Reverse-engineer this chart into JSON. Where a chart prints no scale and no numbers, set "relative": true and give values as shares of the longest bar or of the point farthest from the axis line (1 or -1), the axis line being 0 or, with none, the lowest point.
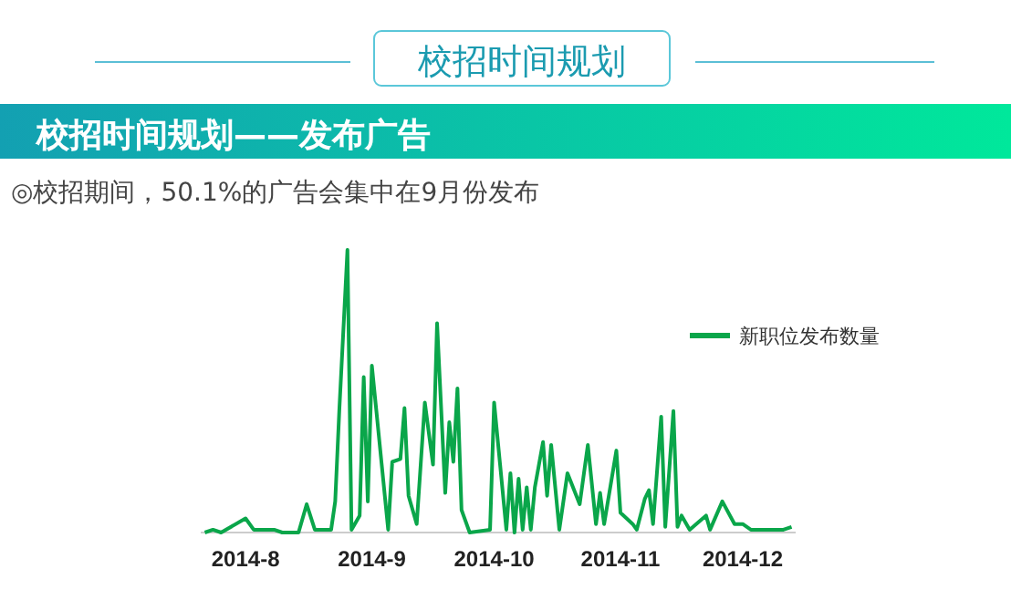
{
  "chart_data": {
    "type": "line",
    "title": "校招时间规划",
    "subtitle": "校招时间规划——发布广告",
    "annotations": [
      "◎校招期间，50.1%的广告会集中在9月份发布"
    ],
    "relative": true,
    "x": [
      "2014-07-22",
      "2014-07-24",
      "2014-07-26",
      "2014-08-01",
      "2014-08-03",
      "2014-08-08",
      "2014-08-10",
      "2014-08-14",
      "2014-08-16",
      "2014-08-18",
      "2014-08-22",
      "2014-08-23",
      "2014-08-24",
      "2014-08-26",
      "2014-08-27",
      "2014-08-29",
      "2014-08-30",
      "2014-08-31",
      "2014-09-01",
      "2014-09-05",
      "2014-09-06",
      "2014-09-08",
      "2014-09-09",
      "2014-09-10",
      "2014-09-12",
      "2014-09-14",
      "2014-09-16",
      "2014-09-17",
      "2014-09-19",
      "2014-09-20",
      "2014-09-21",
      "2014-09-22",
      "2014-09-23",
      "2014-09-25",
      "2014-09-30",
      "2014-10-01",
      "2014-10-04",
      "2014-10-05",
      "2014-10-06",
      "2014-10-07",
      "2014-10-08",
      "2014-10-09",
      "2014-10-10",
      "2014-10-11",
      "2014-10-13",
      "2014-10-14",
      "2014-10-15",
      "2014-10-17",
      "2014-10-19",
      "2014-10-22",
      "2014-10-24",
      "2014-10-26",
      "2014-10-27",
      "2014-10-28",
      "2014-10-31",
      "2014-11-01",
      "2014-11-04",
      "2014-11-05",
      "2014-11-07",
      "2014-11-08",
      "2014-11-09",
      "2014-11-11",
      "2014-11-12",
      "2014-11-14",
      "2014-11-15",
      "2014-11-16",
      "2014-11-18",
      "2014-11-22",
      "2014-11-23",
      "2014-11-26",
      "2014-11-29",
      "2014-12-01",
      "2014-12-03",
      "2014-12-07",
      "2014-12-11",
      "2014-12-13"
    ],
    "series": [
      {
        "name": "新职位发布数量",
        "color": "#0aa64a",
        "values": [
          0,
          0.01,
          0,
          0.05,
          0.01,
          0.01,
          0,
          0,
          0.1,
          0.01,
          0.01,
          0.11,
          0.43,
          1,
          0.01,
          0.06,
          0.55,
          0.11,
          0.59,
          0.01,
          0.25,
          0.26,
          0.44,
          0.13,
          0.03,
          0.46,
          0.24,
          0.74,
          0.14,
          0.39,
          0.25,
          0.51,
          0.08,
          0,
          0.01,
          0.46,
          0.01,
          0.21,
          0,
          0.19,
          0.01,
          0.16,
          0.01,
          0.16,
          0.32,
          0.13,
          0.31,
          0.01,
          0.21,
          0.1,
          0.31,
          0.03,
          0.14,
          0.03,
          0.29,
          0.07,
          0.03,
          0.01,
          0.12,
          0.15,
          0.03,
          0.41,
          0.02,
          0.43,
          0.02,
          0.06,
          0.01,
          0.06,
          0.01,
          0.11,
          0.03,
          0.03,
          0.01,
          0.01,
          0.01,
          0.02
        ]
      }
    ],
    "xlim": [
      "2014-07-21",
      "2014-12-14"
    ],
    "xticks": [
      {
        "value": "2014-08-01",
        "label": "2014-8"
      },
      {
        "value": "2014-09-01",
        "label": "2014-9"
      },
      {
        "value": "2014-10-01",
        "label": "2014-10"
      },
      {
        "value": "2014-11-01",
        "label": "2014-11"
      },
      {
        "value": "2014-12-01",
        "label": "2014-12"
      }
    ],
    "legend": "top right",
    "grid": false,
    "marker": "none",
    "line_style": "solid"
  }
}
